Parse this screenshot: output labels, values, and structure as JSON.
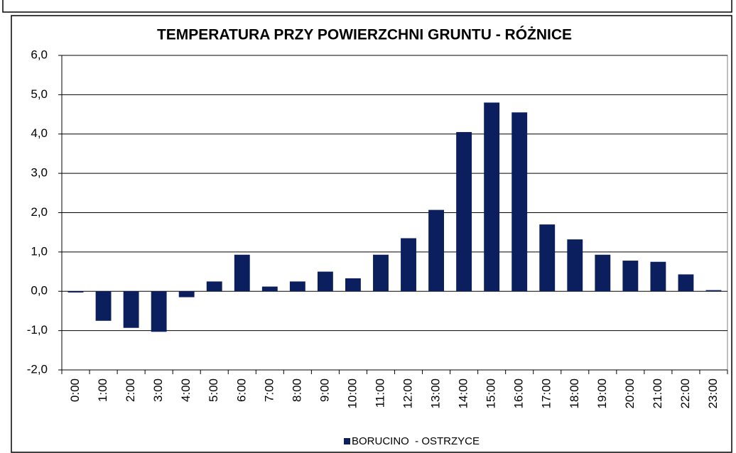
{
  "chart_data": {
    "type": "bar",
    "title": "TEMPERATURA PRZY POWIERZCHNI GRUNTU - RÓŻNICE",
    "categories": [
      "0:00",
      "1:00",
      "2:00",
      "3:00",
      "4:00",
      "5:00",
      "6:00",
      "7:00",
      "8:00",
      "9:00",
      "10:00",
      "11:00",
      "12:00",
      "13:00",
      "14:00",
      "15:00",
      "16:00",
      "17:00",
      "18:00",
      "19:00",
      "20:00",
      "21:00",
      "22:00",
      "23:00"
    ],
    "series": [
      {
        "name": "BORUCINO  - OSTRZYCE",
        "color": "#0b1f5e",
        "values": [
          -0.03,
          -0.75,
          -0.93,
          -1.03,
          -0.15,
          0.25,
          0.93,
          0.12,
          0.25,
          0.5,
          0.33,
          0.93,
          1.35,
          2.07,
          4.05,
          4.8,
          4.55,
          1.7,
          1.32,
          0.93,
          0.78,
          0.75,
          0.43,
          0.03
        ]
      }
    ],
    "ylim": [
      -2,
      6
    ],
    "yticks": [
      {
        "value": -2,
        "label": "-2,0"
      },
      {
        "value": -1,
        "label": "-1,0"
      },
      {
        "value": 0,
        "label": "0,0"
      },
      {
        "value": 1,
        "label": "1,0"
      },
      {
        "value": 2,
        "label": "2,0"
      },
      {
        "value": 3,
        "label": "3,0"
      },
      {
        "value": 4,
        "label": "4,0"
      },
      {
        "value": 5,
        "label": "5,0"
      },
      {
        "value": 6,
        "label": "6,0"
      }
    ],
    "grid": true,
    "legend": "bottom"
  }
}
